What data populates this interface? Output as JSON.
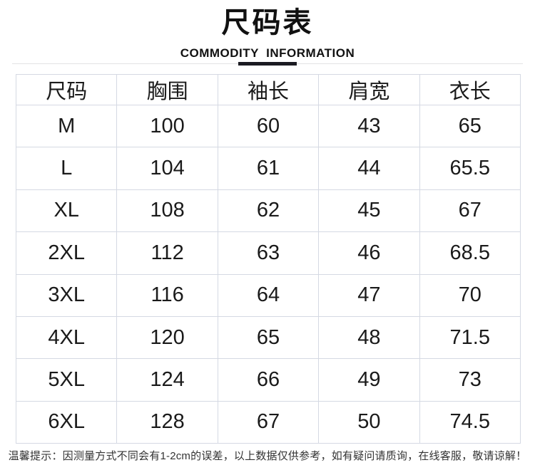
{
  "header": {
    "title": "尺码表",
    "subtitle": "COMMODITY  INFORMATION"
  },
  "chart_data": {
    "type": "table",
    "title": "尺码表",
    "subtitle": "COMMODITY INFORMATION",
    "columns": [
      "尺码",
      "胸围",
      "袖长",
      "肩宽",
      "衣长"
    ],
    "rows": [
      [
        "M",
        100,
        60,
        43,
        65
      ],
      [
        "L",
        104,
        61,
        44,
        65.5
      ],
      [
        "XL",
        108,
        62,
        45,
        67
      ],
      [
        "2XL",
        112,
        63,
        46,
        68.5
      ],
      [
        "3XL",
        116,
        64,
        47,
        70
      ],
      [
        "4XL",
        120,
        65,
        48,
        71.5
      ],
      [
        "5XL",
        124,
        66,
        49,
        73
      ],
      [
        "6XL",
        128,
        67,
        50,
        74.5
      ]
    ]
  },
  "footer": {
    "note": "温馨提示：因测量方式不同会有1-2cm的误差，以上数据仅供参考，如有疑问请质询，在线客服，敬请谅解！"
  },
  "colors": {
    "table_border": "#d5d9e3",
    "divider_line": "#e3e3e4",
    "divider_accent": "#1b1b22",
    "text": "#1a1a1a"
  }
}
